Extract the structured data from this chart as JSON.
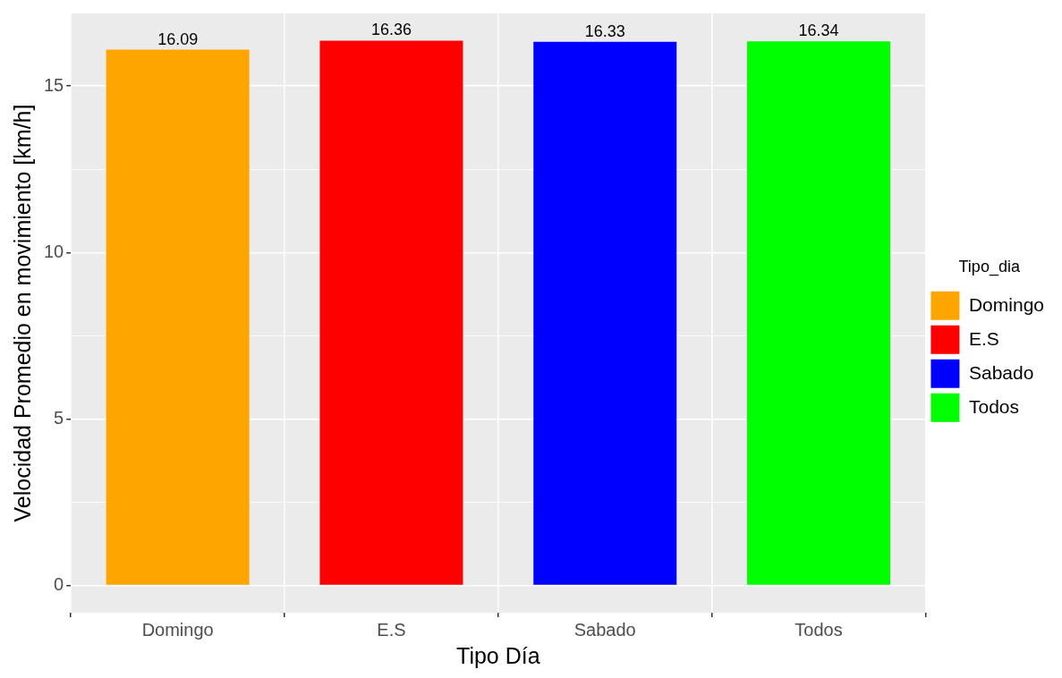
{
  "chart_data": {
    "type": "bar",
    "xlabel": "Tipo Día",
    "ylabel": "Velocidad Promedio en movimiento [km/h]",
    "legend_title": "Tipo_dia",
    "categories": [
      "Domingo",
      "E.S",
      "Sabado",
      "Todos"
    ],
    "series": [
      {
        "name": "Domingo",
        "color": "#ffa500",
        "values": [
          16.09,
          null,
          null,
          null
        ]
      },
      {
        "name": "E.S",
        "color": "#ff0000",
        "values": [
          null,
          16.36,
          null,
          null
        ]
      },
      {
        "name": "Sabado",
        "color": "#0000ff",
        "values": [
          null,
          null,
          16.33,
          null
        ]
      },
      {
        "name": "Todos",
        "color": "#00ff00",
        "values": [
          null,
          null,
          null,
          16.34
        ]
      }
    ],
    "ylim": [
      -0.82,
      17.18
    ],
    "yticks": [
      0,
      {
        "value": 2.5,
        "label": null
      },
      5,
      {
        "value": 7.5,
        "label": null
      },
      10,
      {
        "value": 12.5,
        "label": null
      },
      15
    ],
    "grid": true,
    "legend": "right",
    "data_labels": true
  }
}
